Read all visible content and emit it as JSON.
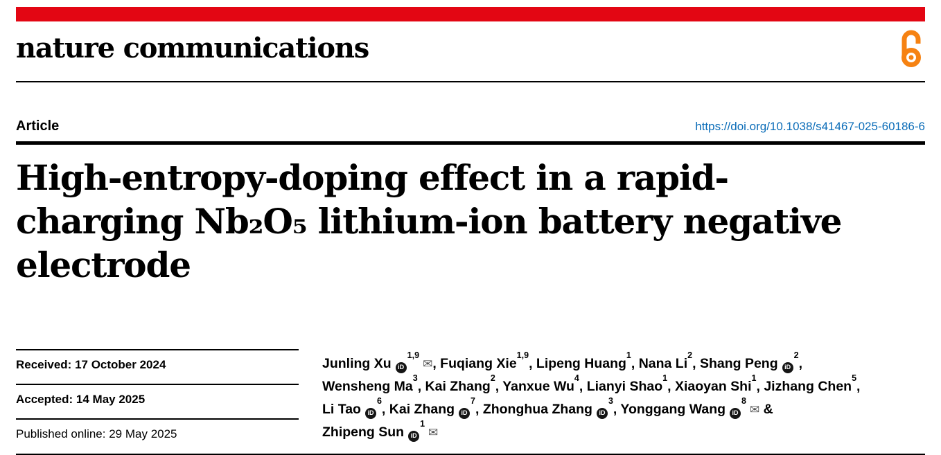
{
  "colors": {
    "brand_red": "#e30613",
    "link_blue": "#0a6cb8",
    "oa_orange": "#f68212"
  },
  "brand": {
    "masthead": "nature communications",
    "open_access_icon": "open-access-padlock"
  },
  "article": {
    "kicker": "Article",
    "doi": "https://doi.org/10.1038/s41467-025-60186-6",
    "title_lines": [
      "High-entropy-doping effect in a rapid-",
      "charging Nb₂O₅ lithium-ion battery negative",
      "electrode"
    ]
  },
  "dates": [
    {
      "label": "Received:",
      "value": "17 October 2024"
    },
    {
      "label": "Accepted:",
      "value": "14 May 2025"
    },
    {
      "label": "Published online:",
      "value": "29 May 2025"
    }
  ],
  "orcid_icon_text": "iD",
  "email_icon_glyph": "✉",
  "authors": [
    {
      "name": "Junling Xu",
      "orcid": true,
      "sup": "1,9",
      "email": true,
      "suffix": ", "
    },
    {
      "name": "Fuqiang Xie",
      "sup": "1,9",
      "suffix": ", "
    },
    {
      "name": "Lipeng Huang",
      "sup": "1",
      "suffix": ", "
    },
    {
      "name": "Nana Li",
      "sup": "2",
      "suffix": ", "
    },
    {
      "name": "Shang Peng",
      "orcid": true,
      "sup": "2",
      "suffix": ", "
    },
    {
      "name": "Wensheng Ma",
      "sup": "3",
      "suffix": ", "
    },
    {
      "name": "Kai Zhang",
      "sup": "2",
      "suffix": ", "
    },
    {
      "name": "Yanxue Wu",
      "sup": "4",
      "suffix": ", "
    },
    {
      "name": "Lianyi Shao",
      "sup": "1",
      "suffix": ", "
    },
    {
      "name": "Xiaoyan Shi",
      "sup": "1",
      "suffix": ", "
    },
    {
      "name": "Jizhang Chen",
      "sup": "5",
      "suffix": ", "
    },
    {
      "name": "Li Tao",
      "orcid": true,
      "sup": "6",
      "suffix": ", "
    },
    {
      "name": "Kai Zhang",
      "orcid": true,
      "sup": "7",
      "suffix": ", "
    },
    {
      "name": "Zhonghua Zhang",
      "orcid": true,
      "sup": "3",
      "suffix": ", "
    },
    {
      "name": "Yonggang Wang",
      "orcid": true,
      "sup": "8",
      "email": true,
      "suffix": " & "
    },
    {
      "name": "Zhipeng Sun",
      "orcid": true,
      "sup": "1",
      "email": true,
      "suffix": ""
    }
  ]
}
